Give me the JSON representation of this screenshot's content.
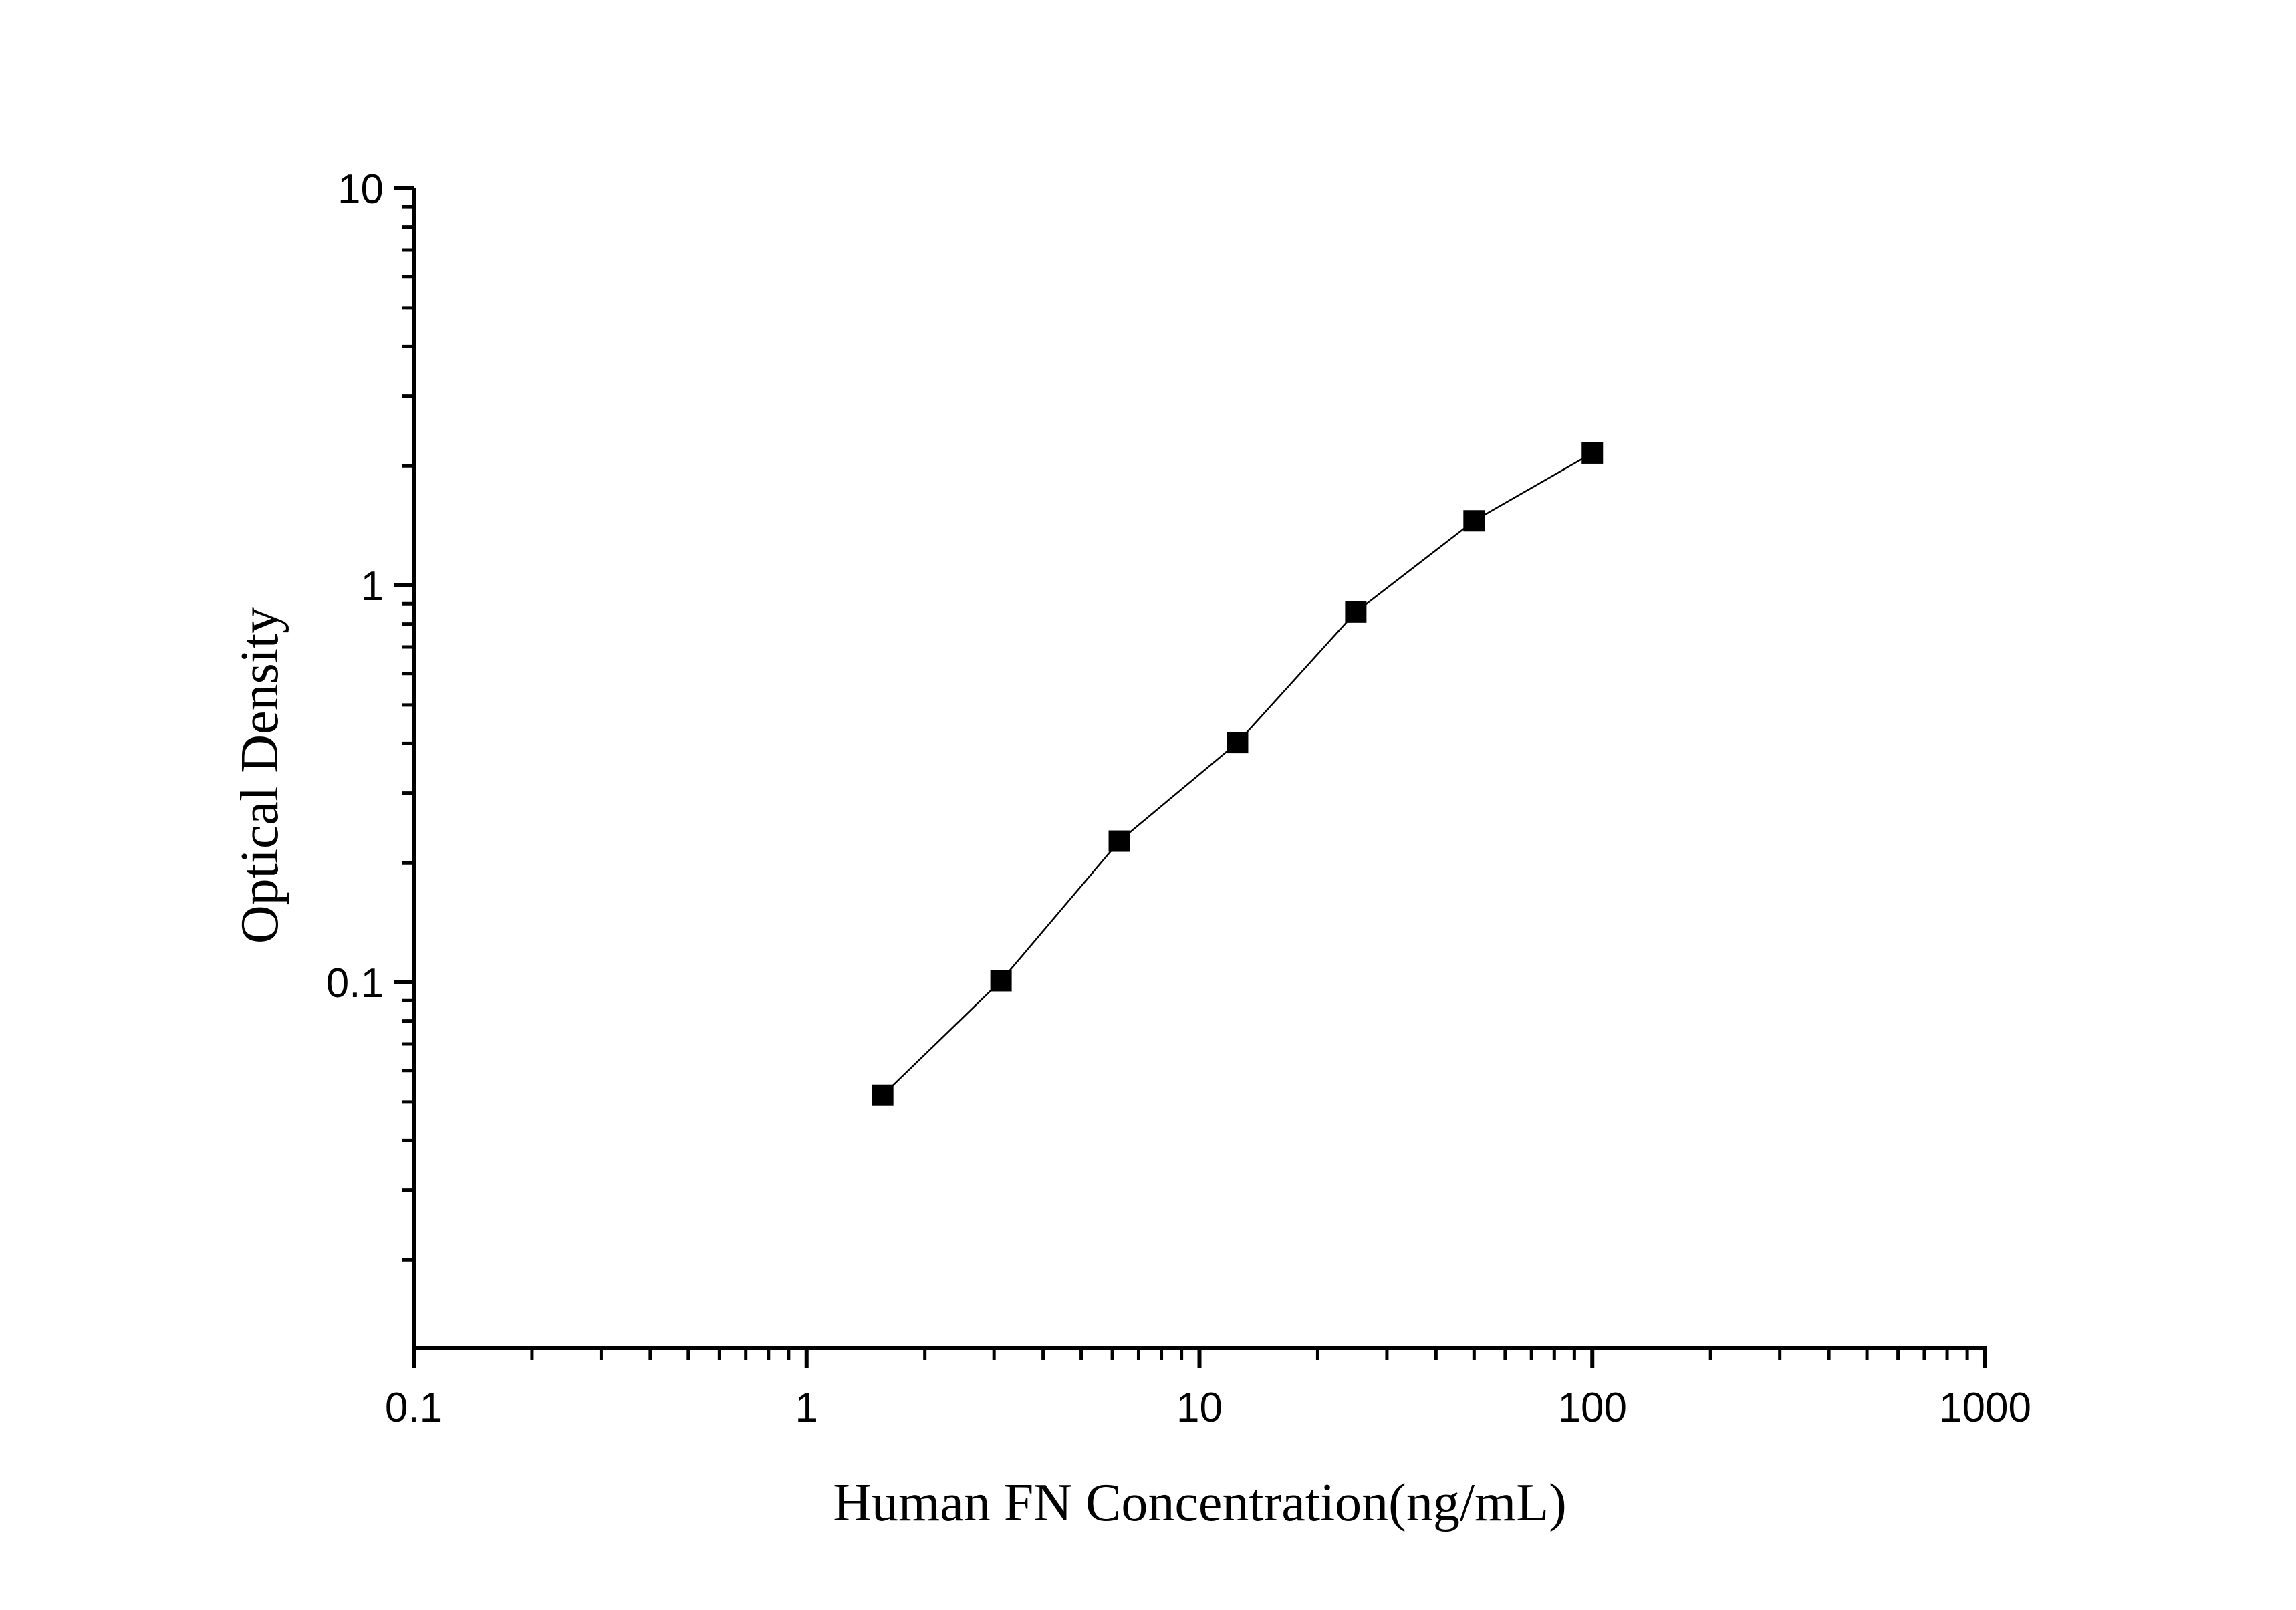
{
  "chart_data": {
    "type": "line",
    "xlabel": "Human FN Concentration(ng/mL)",
    "ylabel": "Optical Density",
    "x_scale": "log",
    "y_scale": "log",
    "xlim": [
      0.1,
      1000
    ],
    "ylim": [
      0.012,
      10
    ],
    "x_ticks": [
      "0.1",
      "1",
      "10",
      "100",
      "1000"
    ],
    "y_ticks": [
      "0.1",
      "1",
      "10"
    ],
    "grid": false,
    "marker": "square",
    "color": "#000000",
    "series": [
      {
        "x": [
          1.5625,
          3.125,
          6.25,
          12.5,
          25,
          50,
          100
        ],
        "y": [
          0.052,
          0.101,
          0.227,
          0.402,
          0.857,
          1.455,
          2.155
        ]
      }
    ]
  }
}
